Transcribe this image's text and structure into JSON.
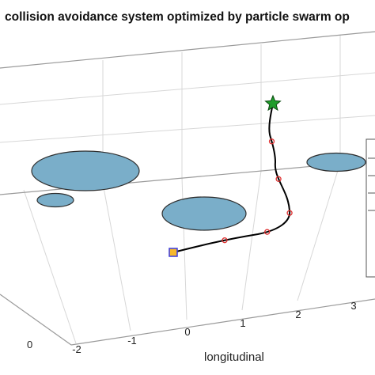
{
  "chart_data": {
    "type": "line",
    "title": "collision avoidance system optimized by particle swarm op",
    "xlabel": "longitudinal",
    "ylabel": "",
    "x_ticks": [
      "-2",
      "-1",
      "0",
      "1",
      "2",
      "3"
    ],
    "side_ticks": [
      "0"
    ],
    "grid": true,
    "legend_placement": "right (partially visible)",
    "colors": {
      "trajectory": "#000000",
      "waypoint": "#e03030",
      "obstacle_fill": "#7aaec9",
      "obstacle_stroke": "#2f2f2f",
      "start_fill": "#f6b82c",
      "start_stroke": "#3a3adf",
      "goal": "#1f9c2b"
    },
    "series": [
      {
        "name": "",
        "x": [
          0,
          1,
          2,
          3,
          4,
          5,
          6
        ],
        "y": [
          0.0,
          0.45,
          0.9,
          1.5,
          2.4,
          3.2,
          3.8
        ]
      }
    ],
    "markers": {
      "start": "start-marker",
      "goal": "goal-star"
    },
    "obstacles": [
      "obstacle-1",
      "obstacle-2",
      "obstacle-3",
      "obstacle-4"
    ]
  }
}
